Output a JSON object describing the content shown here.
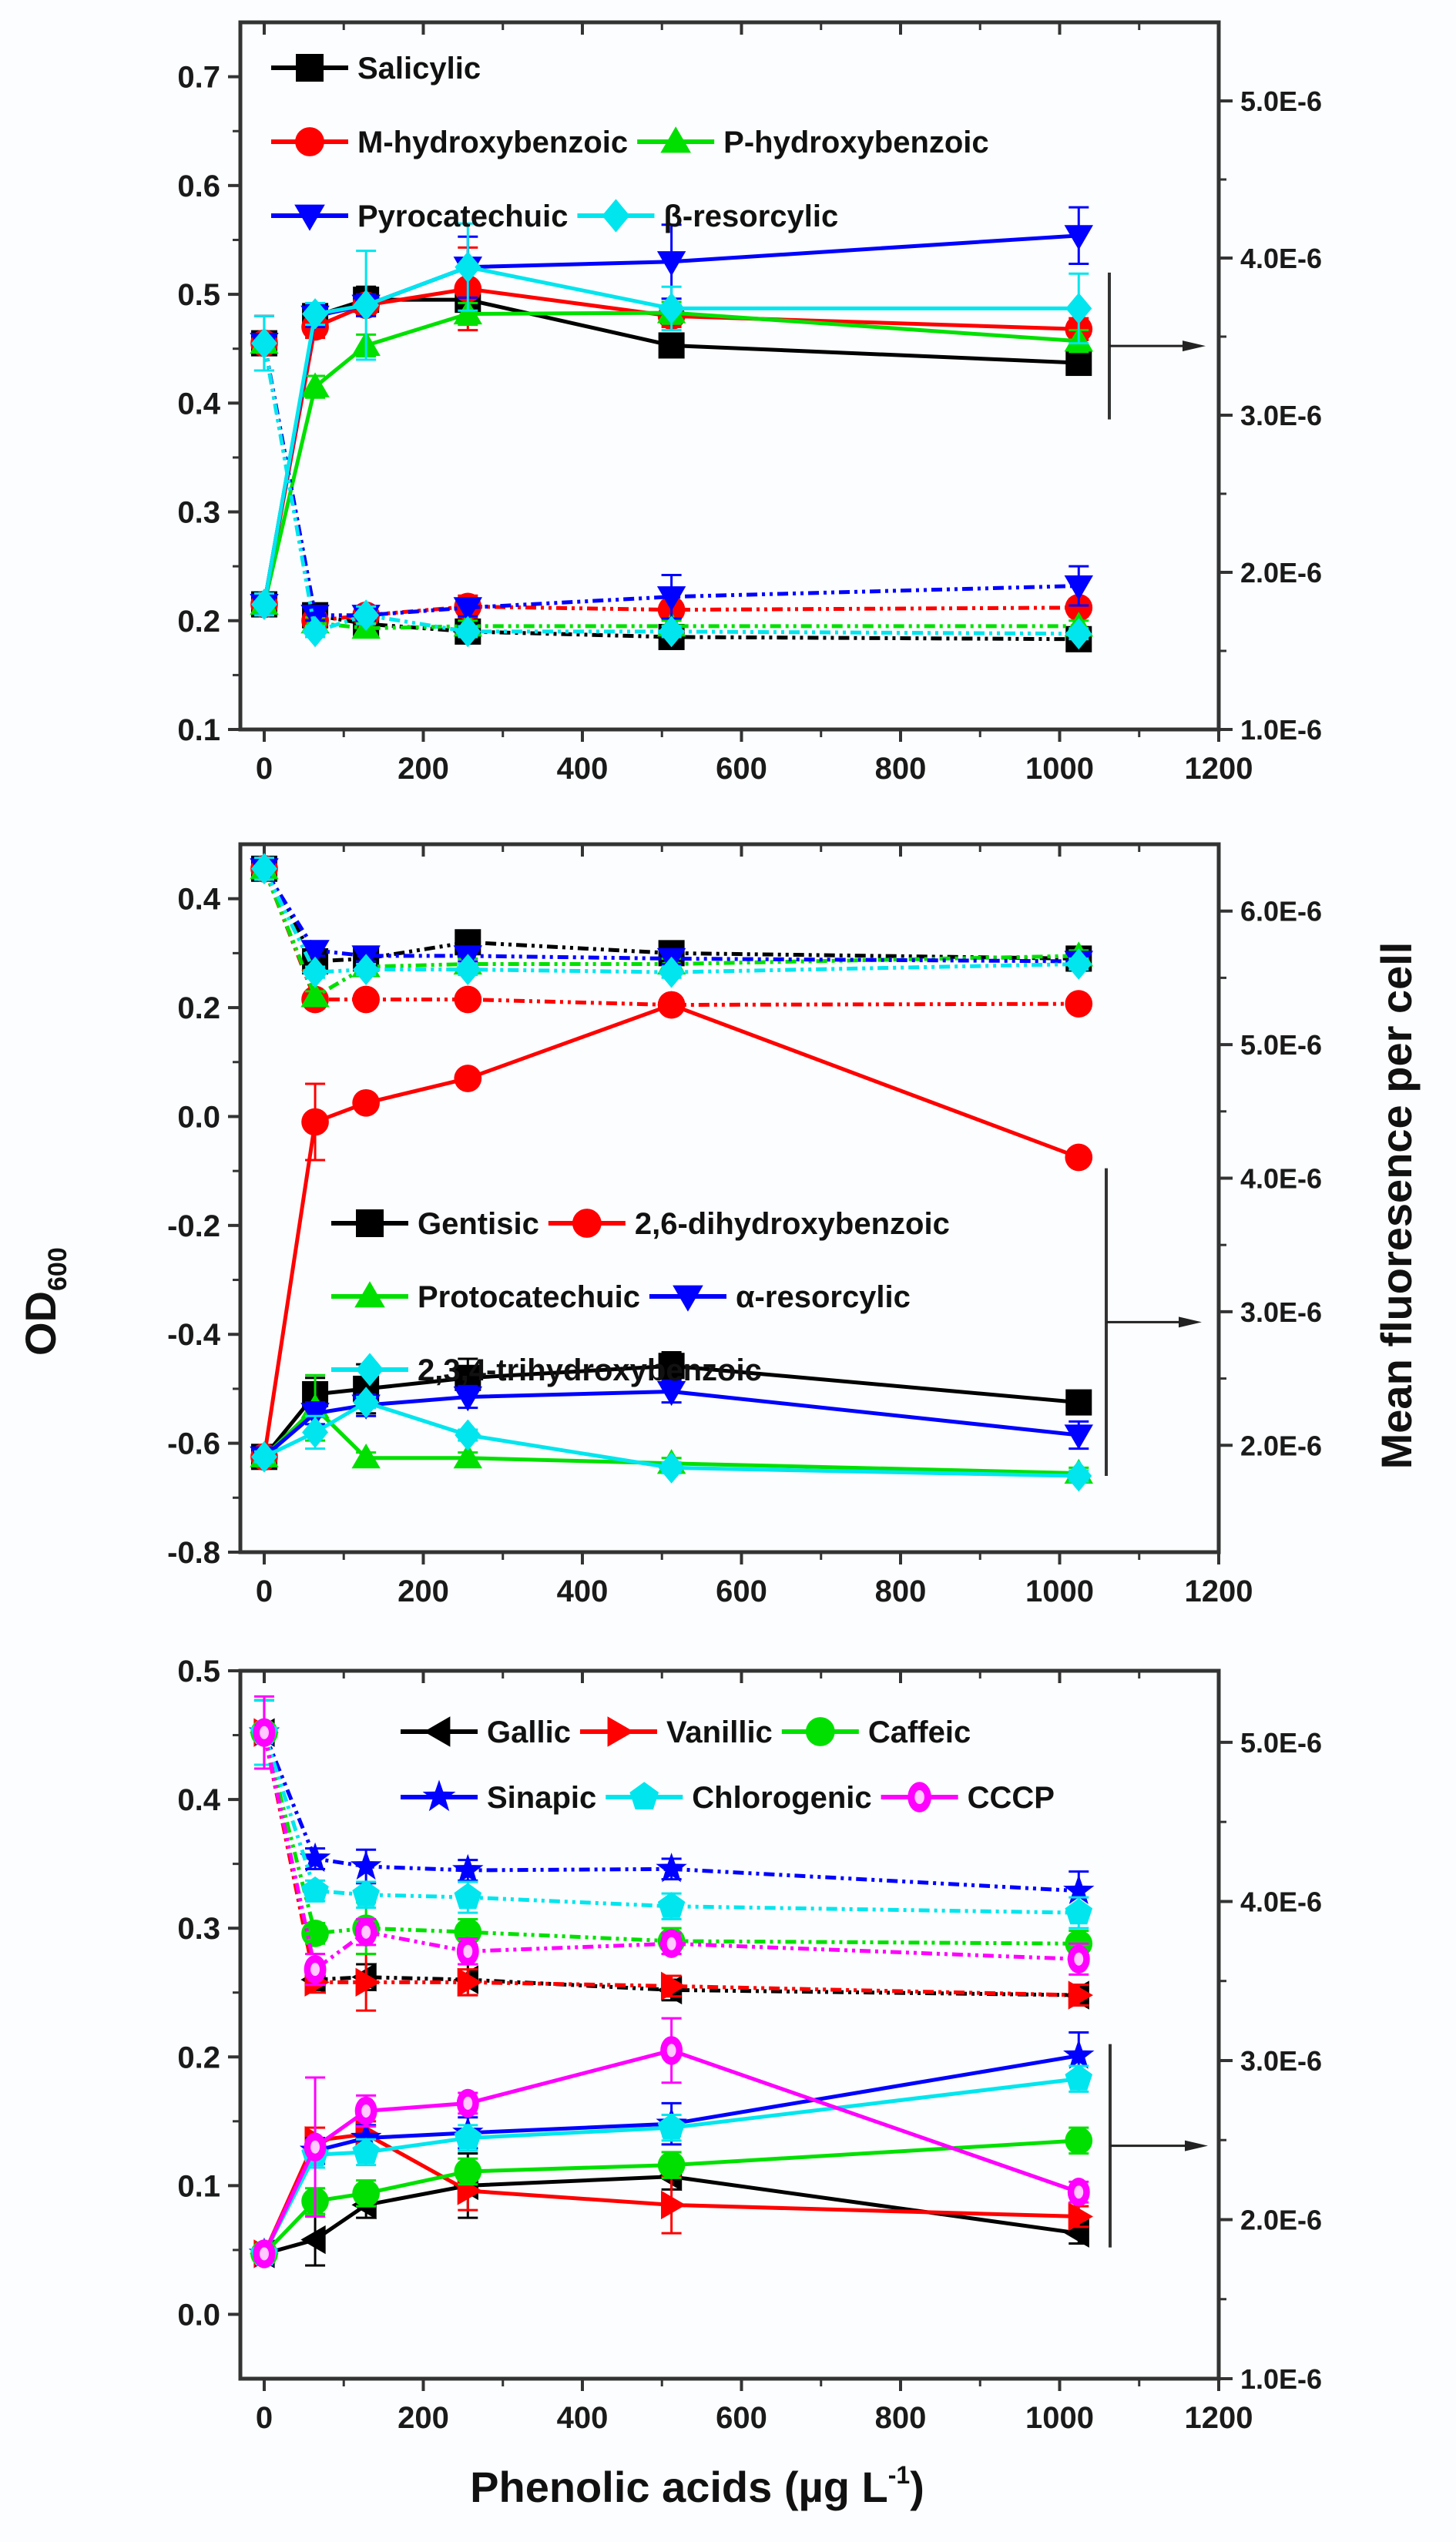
{
  "figure": {
    "left_axis_title": "OD",
    "left_axis_title_sub": "600",
    "right_axis_title": "Mean  fluoresence per cell",
    "x_axis_title": "Phenolic  acids (µg L",
    "x_axis_title_sup": "-1",
    "x_axis_title_end": ")"
  },
  "chart_data": [
    {
      "type": "line",
      "panel": "top",
      "xlabel": "",
      "ylabel": "OD600",
      "y2label": "Mean fluoresence per cell",
      "xlim": [
        -30,
        1200
      ],
      "xticks": [
        0,
        200,
        400,
        600,
        800,
        1000,
        1200
      ],
      "ylim": [
        0.1,
        0.75
      ],
      "yticks": [
        "0.1",
        "0.2",
        "0.3",
        "0.4",
        "0.5",
        "0.6",
        "0.7"
      ],
      "y2lim": [
        1e-06,
        5.5e-06
      ],
      "y2ticks": [
        "1.0E-6",
        "2.0E-6",
        "3.0E-6",
        "4.0E-6",
        "5.0E-6"
      ],
      "grid": false,
      "legend_position": "top-left",
      "annotation": "arrow pointing solid lines to right axis",
      "x": [
        0,
        64,
        128,
        256,
        512,
        1024
      ],
      "series": [
        {
          "name": "Salicylic",
          "color": "#000000",
          "marker": "square",
          "solid": [
            0.215,
            0.48,
            0.495,
            0.495,
            0.453,
            0.437
          ],
          "solid_err": [
            0.01,
            0.01,
            0.012,
            0.01,
            0.01,
            0.008
          ],
          "dashed": [
            0.455,
            0.205,
            0.197,
            0.19,
            0.185,
            0.183
          ],
          "dashed_err": [
            0.025,
            0.005,
            0.005,
            0.006,
            0.006,
            0.005
          ]
        },
        {
          "name": "M-hydroxybenzoic",
          "color": "#ff0000",
          "marker": "circle",
          "solid": [
            0.215,
            0.47,
            0.49,
            0.505,
            0.48,
            0.468
          ],
          "solid_err": [
            0.01,
            0.01,
            0.01,
            0.038,
            0.01,
            0.01
          ],
          "dashed": [
            0.455,
            0.2,
            0.205,
            0.213,
            0.21,
            0.212
          ],
          "dashed_err": [
            0.025,
            0.005,
            0.005,
            0.01,
            0.008,
            0.008
          ]
        },
        {
          "name": "P-hydroxybenzoic",
          "color": "#00e000",
          "marker": "triangle-up",
          "solid": [
            0.215,
            0.415,
            0.453,
            0.482,
            0.483,
            0.457
          ],
          "solid_err": [
            0.01,
            0.01,
            0.01,
            0.01,
            0.01,
            0.01
          ],
          "dashed": [
            0.455,
            0.198,
            0.193,
            0.195,
            0.195,
            0.195
          ],
          "dashed_err": [
            0.025,
            0.005,
            0.005,
            0.005,
            0.005,
            0.005
          ]
        },
        {
          "name": "Pyrocatechuic",
          "color": "#0000ff",
          "marker": "triangle-down",
          "solid": [
            0.215,
            0.48,
            0.49,
            0.525,
            0.53,
            0.554
          ],
          "solid_err": [
            0.01,
            0.01,
            0.01,
            0.028,
            0.034,
            0.026
          ],
          "dashed": [
            0.455,
            0.205,
            0.205,
            0.212,
            0.222,
            0.232
          ],
          "dashed_err": [
            0.025,
            0.005,
            0.005,
            0.008,
            0.02,
            0.018
          ]
        },
        {
          "name": "β-resorcylic",
          "color": "#00e5ee",
          "marker": "diamond",
          "solid": [
            0.215,
            0.482,
            0.49,
            0.525,
            0.487,
            0.487
          ],
          "solid_err": [
            0.01,
            0.01,
            0.05,
            0.04,
            0.02,
            0.032
          ],
          "dashed": [
            0.455,
            0.19,
            0.205,
            0.19,
            0.19,
            0.188
          ],
          "dashed_err": [
            0.025,
            0.005,
            0.008,
            0.005,
            0.005,
            0.005
          ]
        }
      ]
    },
    {
      "type": "line",
      "panel": "middle",
      "xlabel": "",
      "ylabel": "OD600",
      "y2label": "Mean fluoresence per cell",
      "xlim": [
        -30,
        1200
      ],
      "xticks": [
        0,
        200,
        400,
        600,
        800,
        1000,
        1200
      ],
      "ylim": [
        -0.8,
        0.5
      ],
      "yticks": [
        "-0.8",
        "-0.6",
        "-0.4",
        "-0.2",
        "0.0",
        "0.2",
        "0.4"
      ],
      "y2lim": [
        1.2e-06,
        6.5e-06
      ],
      "y2ticks": [
        "2.0E-6",
        "3.0E-6",
        "4.0E-6",
        "5.0E-6",
        "6.0E-6"
      ],
      "grid": false,
      "legend_position": "center",
      "annotation": "arrow pointing solid lines to right axis",
      "x": [
        0,
        64,
        128,
        256,
        512,
        1024
      ],
      "series": [
        {
          "name": "Gentisic",
          "color": "#000000",
          "marker": "square",
          "solid": [
            -0.625,
            -0.51,
            -0.5,
            -0.48,
            -0.458,
            -0.525
          ],
          "solid_err": [
            0.01,
            0.03,
            0.045,
            0.035,
            0.025,
            0.015
          ],
          "dashed": [
            0.455,
            0.285,
            0.29,
            0.32,
            0.3,
            0.29
          ],
          "dashed_err": [
            0.02,
            0.01,
            0.01,
            0.01,
            0.01,
            0.01
          ]
        },
        {
          "name": "2,6-dihydroxybenzoic",
          "color": "#ff0000",
          "marker": "circle",
          "solid": [
            -0.625,
            -0.01,
            0.025,
            0.07,
            0.205,
            -0.075
          ],
          "solid_err": [
            0.01,
            0.07,
            0.01,
            0.01,
            0.01,
            0.01
          ],
          "dashed": [
            0.455,
            0.215,
            0.215,
            0.215,
            0.205,
            0.207
          ],
          "dashed_err": [
            0.02,
            0.01,
            0.01,
            0.015,
            0.01,
            0.01
          ]
        },
        {
          "name": "Protocatechuic",
          "color": "#00e000",
          "marker": "triangle-up",
          "solid": [
            -0.625,
            -0.535,
            -0.627,
            -0.627,
            -0.637,
            -0.655
          ],
          "solid_err": [
            0.01,
            0.06,
            0.01,
            0.01,
            0.01,
            0.01
          ],
          "dashed": [
            0.455,
            0.22,
            0.275,
            0.28,
            0.28,
            0.295
          ],
          "dashed_err": [
            0.02,
            0.01,
            0.01,
            0.01,
            0.01,
            0.01
          ]
        },
        {
          "name": "α-resorcylic",
          "color": "#0000ff",
          "marker": "triangle-down",
          "solid": [
            -0.625,
            -0.545,
            -0.53,
            -0.515,
            -0.505,
            -0.585
          ],
          "solid_err": [
            0.01,
            0.02,
            0.02,
            0.02,
            0.02,
            0.025
          ],
          "dashed": [
            0.455,
            0.305,
            0.295,
            0.295,
            0.29,
            0.285
          ],
          "dashed_err": [
            0.02,
            0.01,
            0.01,
            0.01,
            0.01,
            0.01
          ]
        },
        {
          "name": "2,3,4-trihydroxybenzoic",
          "color": "#00e5ee",
          "marker": "diamond",
          "solid": [
            -0.625,
            -0.58,
            -0.525,
            -0.585,
            -0.645,
            -0.66
          ],
          "solid_err": [
            0.01,
            0.03,
            0.01,
            0.01,
            0.01,
            0.01
          ],
          "dashed": [
            0.455,
            0.265,
            0.27,
            0.27,
            0.265,
            0.28
          ],
          "dashed_err": [
            0.02,
            0.01,
            0.01,
            0.01,
            0.01,
            0.01
          ]
        }
      ]
    },
    {
      "type": "line",
      "panel": "bottom",
      "xlabel": "Phenolic acids (µg L-1)",
      "ylabel": "OD600",
      "y2label": "Mean fluoresence per cell",
      "xlim": [
        -30,
        1200
      ],
      "xticks": [
        0,
        200,
        400,
        600,
        800,
        1000,
        1200
      ],
      "ylim": [
        -0.05,
        0.5
      ],
      "yticks": [
        "0.0",
        "0.1",
        "0.2",
        "0.3",
        "0.4",
        "0.5"
      ],
      "y2lim": [
        1e-06,
        5.45e-06
      ],
      "y2ticks": [
        "1.0E-6",
        "2.0E-6",
        "3.0E-6",
        "4.0E-6",
        "5.0E-6"
      ],
      "grid": false,
      "legend_position": "top-right",
      "annotation": "arrow pointing solid lines to right axis",
      "x": [
        0,
        64,
        128,
        256,
        512,
        1024
      ],
      "series": [
        {
          "name": "Gallic",
          "color": "#000000",
          "marker": "triangle-left",
          "solid": [
            0.047,
            0.058,
            0.085,
            0.1,
            0.107,
            0.063
          ],
          "solid_err": [
            0.005,
            0.02,
            0.01,
            0.025,
            0.01,
            0.008
          ],
          "dashed": [
            0.452,
            0.26,
            0.262,
            0.26,
            0.252,
            0.248
          ],
          "dashed_err": [
            0.025,
            0.008,
            0.01,
            0.012,
            0.008,
            0.008
          ]
        },
        {
          "name": "Vanillic",
          "color": "#ff0000",
          "marker": "triangle-right",
          "solid": [
            0.047,
            0.135,
            0.14,
            0.096,
            0.085,
            0.076
          ],
          "solid_err": [
            0.005,
            0.01,
            0.01,
            0.015,
            0.022,
            0.008
          ],
          "dashed": [
            0.452,
            0.258,
            0.258,
            0.258,
            0.255,
            0.248
          ],
          "dashed_err": [
            0.025,
            0.008,
            0.022,
            0.01,
            0.008,
            0.008
          ]
        },
        {
          "name": "Caffeic",
          "color": "#00e000",
          "marker": "circle",
          "solid": [
            0.047,
            0.088,
            0.094,
            0.111,
            0.116,
            0.135
          ],
          "solid_err": [
            0.005,
            0.01,
            0.01,
            0.01,
            0.01,
            0.01
          ],
          "dashed": [
            0.452,
            0.296,
            0.3,
            0.297,
            0.29,
            0.288
          ],
          "dashed_err": [
            0.025,
            0.008,
            0.02,
            0.01,
            0.01,
            0.01
          ]
        },
        {
          "name": "Sinapic",
          "color": "#0000ff",
          "marker": "star",
          "solid": [
            0.047,
            0.127,
            0.137,
            0.141,
            0.148,
            0.201
          ],
          "solid_err": [
            0.005,
            0.01,
            0.01,
            0.012,
            0.016,
            0.018
          ],
          "dashed": [
            0.452,
            0.354,
            0.348,
            0.345,
            0.346,
            0.329
          ],
          "dashed_err": [
            0.025,
            0.008,
            0.013,
            0.008,
            0.008,
            0.015
          ]
        },
        {
          "name": "Chlorogenic",
          "color": "#00e5ee",
          "marker": "pentagon",
          "solid": [
            0.047,
            0.124,
            0.126,
            0.137,
            0.145,
            0.183
          ],
          "solid_err": [
            0.005,
            0.01,
            0.01,
            0.01,
            0.01,
            0.01
          ],
          "dashed": [
            0.452,
            0.329,
            0.326,
            0.324,
            0.317,
            0.312
          ],
          "dashed_err": [
            0.025,
            0.008,
            0.01,
            0.012,
            0.01,
            0.012
          ]
        },
        {
          "name": "CCCP",
          "color": "#ff00ff",
          "marker": "hex-circle",
          "solid": [
            0.047,
            0.13,
            0.158,
            0.164,
            0.205,
            0.095
          ],
          "solid_err": [
            0.005,
            0.054,
            0.012,
            0.008,
            0.025,
            0.008
          ],
          "dashed": [
            0.452,
            0.268,
            0.297,
            0.282,
            0.288,
            0.276
          ],
          "dashed_err": [
            0.028,
            0.012,
            0.01,
            0.01,
            0.008,
            0.012
          ]
        }
      ]
    }
  ]
}
